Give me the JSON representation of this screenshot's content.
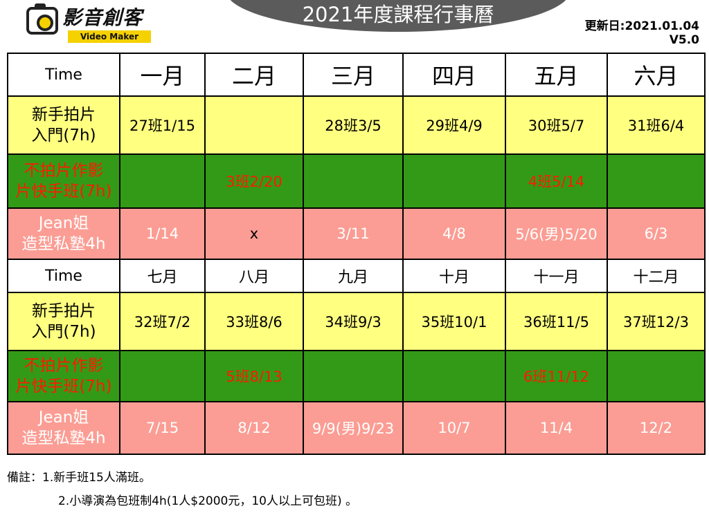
{
  "logo": {
    "name": "影音創客",
    "sub": "Video Maker"
  },
  "title": "2021年度課程行事曆",
  "update": {
    "date": "更新日:2021.01.04",
    "version": "V5.0"
  },
  "table": {
    "block1": {
      "header": [
        "Time",
        "一月",
        "二月",
        "三月",
        "四月",
        "五月",
        "六月"
      ],
      "rows": [
        {
          "label": [
            "新手拍片",
            "入門(7h)"
          ],
          "cells": [
            "27班1/15",
            "",
            "28班3/5",
            "29班4/9",
            "30班5/7",
            "31班6/4"
          ]
        },
        {
          "label": [
            "不拍片作影",
            "片快手班(7h)"
          ],
          "cells": [
            "",
            "3班2/20",
            "",
            "",
            "4班5/14",
            ""
          ]
        },
        {
          "label": [
            "Jean姐",
            "造型私塾4h"
          ],
          "cells": [
            "1/14",
            "x",
            "3/11",
            "4/8",
            "5/6(男)5/20",
            "6/3"
          ]
        }
      ]
    },
    "block2": {
      "header": [
        "Time",
        "七月",
        "八月",
        "九月",
        "十月",
        "十一月",
        "十二月"
      ],
      "rows": [
        {
          "label": [
            "新手拍片",
            "入門(7h)"
          ],
          "cells": [
            "32班7/2",
            "33班8/6",
            "34班9/3",
            "35班10/1",
            "36班11/5",
            "37班12/3"
          ]
        },
        {
          "label": [
            "不拍片作影",
            "片快手班(7h)"
          ],
          "cells": [
            "",
            "5班8/13",
            "",
            "",
            "6班11/12",
            ""
          ]
        },
        {
          "label": [
            "Jean姐",
            "造型私塾4h"
          ],
          "cells": [
            "7/15",
            "8/12",
            "9/9(男)9/23",
            "10/7",
            "11/4",
            "12/2"
          ]
        }
      ]
    }
  },
  "notes": [
    "備註：1.新手班15人滿班。",
    "2.小導演為包班制4h(1人$2000元，10人以上可包班) 。"
  ],
  "colors": {
    "yellow": "#ffff80",
    "green": "#339a17",
    "pink": "#fb9d94",
    "red": "#ff1a00",
    "title_bg": "#5b5b5b"
  }
}
